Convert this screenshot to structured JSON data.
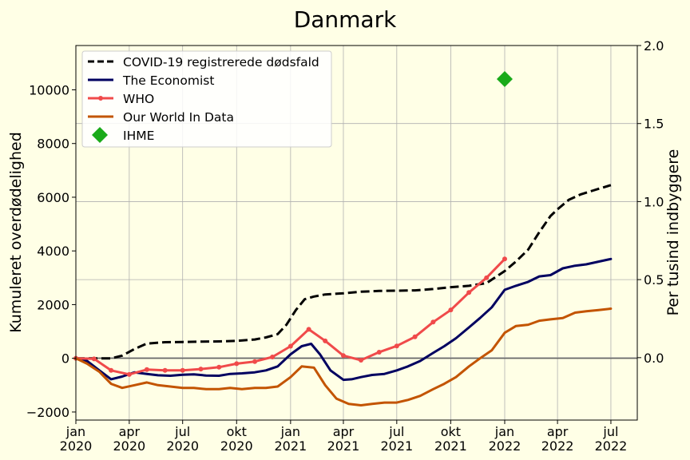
{
  "chart_data": {
    "type": "line",
    "title": "Danmark",
    "ylabel": "Kumuleret overdødelighed",
    "ylabel_right": "Per tusind indbyggere",
    "ylim": [
      -2300,
      11650
    ],
    "ylim_right": [
      -0.4,
      2.0
    ],
    "xlim": [
      "2020-01-01",
      "2022-08-15"
    ],
    "grid": true,
    "legend_position": "top-left",
    "x_ticks": [
      {
        "date": "2020-01-01",
        "month": "jan",
        "year": "2020"
      },
      {
        "date": "2020-04-01",
        "month": "apr",
        "year": "2020"
      },
      {
        "date": "2020-07-01",
        "month": "jul",
        "year": "2020"
      },
      {
        "date": "2020-10-01",
        "month": "okt",
        "year": "2020"
      },
      {
        "date": "2021-01-01",
        "month": "jan",
        "year": "2021"
      },
      {
        "date": "2021-04-01",
        "month": "apr",
        "year": "2021"
      },
      {
        "date": "2021-07-01",
        "month": "jul",
        "year": "2021"
      },
      {
        "date": "2021-10-01",
        "month": "okt",
        "year": "2021"
      },
      {
        "date": "2022-01-01",
        "month": "jan",
        "year": "2022"
      },
      {
        "date": "2022-04-01",
        "month": "apr",
        "year": "2022"
      },
      {
        "date": "2022-07-01",
        "month": "jul",
        "year": "2022"
      }
    ],
    "y_ticks": [
      "−2000",
      "0",
      "2000",
      "4000",
      "6000",
      "8000",
      "10000"
    ],
    "y_tick_values": [
      -2000,
      0,
      2000,
      4000,
      6000,
      8000,
      10000
    ],
    "y_ticks_right": [
      "0.0",
      "0.5",
      "1.0",
      "1.5",
      "2.0"
    ],
    "y_tick_values_right": [
      0.0,
      0.5,
      1.0,
      1.5,
      2.0
    ],
    "series": [
      {
        "name": "COVID-19 registrerede dødsfald",
        "color": "#000000",
        "style": "dashed",
        "x": [
          "2020-01-01",
          "2020-03-01",
          "2020-03-20",
          "2020-04-10",
          "2020-05-01",
          "2020-06-01",
          "2020-07-01",
          "2020-08-01",
          "2020-09-01",
          "2020-10-01",
          "2020-11-01",
          "2020-11-20",
          "2020-12-10",
          "2020-12-25",
          "2021-01-10",
          "2021-01-25",
          "2021-02-10",
          "2021-03-01",
          "2021-04-01",
          "2021-05-01",
          "2021-06-01",
          "2021-07-01",
          "2021-08-01",
          "2021-09-01",
          "2021-10-01",
          "2021-11-01",
          "2021-12-01",
          "2022-01-01",
          "2022-01-20",
          "2022-02-10",
          "2022-03-01",
          "2022-03-20",
          "2022-04-01",
          "2022-04-20",
          "2022-05-10",
          "2022-06-01",
          "2022-07-01"
        ],
        "values": [
          0,
          0,
          100,
          350,
          550,
          600,
          610,
          620,
          630,
          650,
          700,
          780,
          900,
          1250,
          1800,
          2200,
          2300,
          2380,
          2420,
          2480,
          2510,
          2520,
          2530,
          2580,
          2650,
          2700,
          2800,
          3250,
          3600,
          4050,
          4700,
          5300,
          5550,
          5900,
          6100,
          6250,
          6450
        ]
      },
      {
        "name": "The Economist",
        "color": "#000060",
        "style": "solid",
        "x": [
          "2020-01-01",
          "2020-01-20",
          "2020-02-10",
          "2020-03-01",
          "2020-03-20",
          "2020-04-10",
          "2020-05-01",
          "2020-05-20",
          "2020-06-10",
          "2020-07-01",
          "2020-07-20",
          "2020-08-10",
          "2020-09-01",
          "2020-09-20",
          "2020-10-10",
          "2020-11-01",
          "2020-11-20",
          "2020-12-10",
          "2021-01-01",
          "2021-01-20",
          "2021-02-05",
          "2021-02-20",
          "2021-03-10",
          "2021-04-01",
          "2021-04-15",
          "2021-05-01",
          "2021-05-20",
          "2021-06-10",
          "2021-07-01",
          "2021-07-20",
          "2021-08-10",
          "2021-09-01",
          "2021-09-20",
          "2021-10-10",
          "2021-11-01",
          "2021-11-20",
          "2021-12-10",
          "2022-01-01",
          "2022-01-20",
          "2022-02-10",
          "2022-03-01",
          "2022-03-20",
          "2022-04-10",
          "2022-05-01",
          "2022-05-20",
          "2022-06-10",
          "2022-07-01"
        ],
        "values": [
          0,
          -100,
          -450,
          -780,
          -680,
          -520,
          -580,
          -630,
          -650,
          -610,
          -600,
          -640,
          -650,
          -580,
          -560,
          -520,
          -450,
          -300,
          150,
          450,
          540,
          150,
          -450,
          -800,
          -780,
          -700,
          -620,
          -580,
          -450,
          -300,
          -100,
          200,
          450,
          750,
          1150,
          1500,
          1900,
          2550,
          2700,
          2850,
          3050,
          3100,
          3350,
          3450,
          3500,
          3600,
          3700
        ]
      },
      {
        "name": "WHO",
        "color": "#f04a4a",
        "style": "solid-markers",
        "x": [
          "2020-01-01",
          "2020-02-01",
          "2020-03-01",
          "2020-04-01",
          "2020-05-01",
          "2020-06-01",
          "2020-07-01",
          "2020-08-01",
          "2020-09-01",
          "2020-10-01",
          "2020-11-01",
          "2020-12-01",
          "2021-01-01",
          "2021-02-01",
          "2021-03-01",
          "2021-04-01",
          "2021-05-01",
          "2021-06-01",
          "2021-07-01",
          "2021-08-01",
          "2021-09-01",
          "2021-10-01",
          "2021-11-01",
          "2021-12-01",
          "2022-01-01"
        ],
        "values": [
          0,
          -20,
          -450,
          -600,
          -420,
          -450,
          -450,
          -400,
          -330,
          -200,
          -120,
          50,
          450,
          1080,
          650,
          100,
          -70,
          230,
          460,
          800,
          1350,
          1800,
          2450,
          3000,
          3700
        ]
      },
      {
        "name": "Our World In Data",
        "color": "#c35400",
        "style": "solid",
        "x": [
          "2020-01-01",
          "2020-01-20",
          "2020-02-10",
          "2020-03-01",
          "2020-03-20",
          "2020-04-10",
          "2020-05-01",
          "2020-05-20",
          "2020-06-10",
          "2020-07-01",
          "2020-07-20",
          "2020-08-10",
          "2020-09-01",
          "2020-09-20",
          "2020-10-10",
          "2020-11-01",
          "2020-11-20",
          "2020-12-10",
          "2021-01-01",
          "2021-01-20",
          "2021-02-10",
          "2021-03-01",
          "2021-03-20",
          "2021-04-10",
          "2021-05-01",
          "2021-05-20",
          "2021-06-10",
          "2021-07-01",
          "2021-07-20",
          "2021-08-10",
          "2021-09-01",
          "2021-09-20",
          "2021-10-10",
          "2021-11-01",
          "2021-11-20",
          "2021-12-10",
          "2022-01-01",
          "2022-01-20",
          "2022-02-10",
          "2022-03-01",
          "2022-03-20",
          "2022-04-10",
          "2022-05-01",
          "2022-05-20",
          "2022-06-10",
          "2022-07-01"
        ],
        "values": [
          0,
          -200,
          -500,
          -950,
          -1100,
          -1000,
          -900,
          -1000,
          -1050,
          -1100,
          -1100,
          -1150,
          -1150,
          -1100,
          -1150,
          -1100,
          -1100,
          -1050,
          -700,
          -300,
          -350,
          -1000,
          -1500,
          -1700,
          -1750,
          -1700,
          -1650,
          -1650,
          -1550,
          -1400,
          -1150,
          -950,
          -700,
          -300,
          0,
          300,
          950,
          1200,
          1250,
          1400,
          1450,
          1500,
          1700,
          1750,
          1800,
          1850
        ]
      },
      {
        "name": "IHME",
        "color": "#1aaa1a",
        "style": "marker-diamond",
        "x": [
          "2022-01-01"
        ],
        "values": [
          10400
        ]
      }
    ]
  }
}
